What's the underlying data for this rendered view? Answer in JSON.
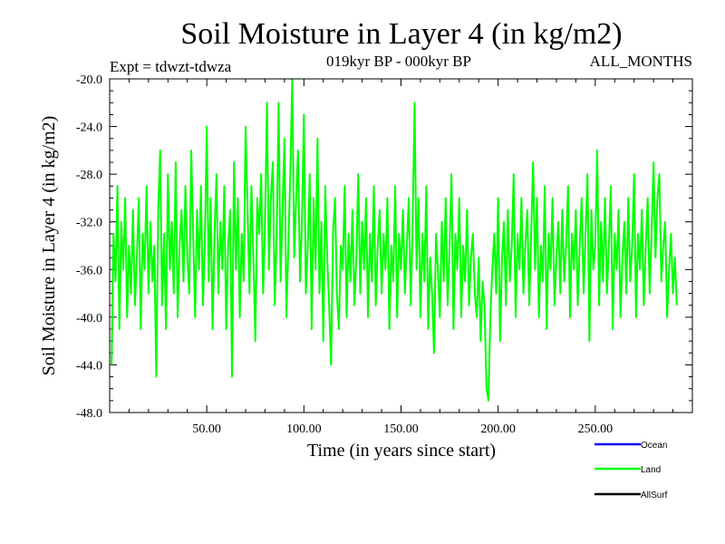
{
  "chart_data": {
    "type": "line",
    "title": "Soil Moisture in Layer 4 (in kg/m2)",
    "subtitle_left": "Expt = tdwzt-tdwza",
    "subtitle_center": "019kyr BP - 000kyr BP",
    "subtitle_right": "ALL_MONTHS",
    "xlabel": "Time (in years since start)",
    "ylabel": "Soil Moisture in Layer 4 (in kg/m2)",
    "xlim": [
      0,
      300
    ],
    "ylim": [
      -48,
      -20
    ],
    "x_ticks": [
      50,
      100,
      150,
      200,
      250
    ],
    "x_tick_labels": [
      "50.00",
      "100.00",
      "150.00",
      "200.00",
      "250.00"
    ],
    "y_ticks": [
      -20,
      -24,
      -28,
      -32,
      -36,
      -40,
      -44,
      -48
    ],
    "y_tick_labels": [
      "-20.0",
      "-24.0",
      "-28.0",
      "-32.0",
      "-36.0",
      "-40.0",
      "-44.0",
      "-48.0"
    ],
    "series": [
      {
        "name": "Land",
        "color": "#00ff00",
        "x_start": 1,
        "x_step": 1,
        "values": [
          -44,
          -33,
          -37,
          -29,
          -41,
          -32,
          -36,
          -30,
          -40,
          -34,
          -38,
          -31,
          -39,
          -35,
          -30,
          -41,
          -33,
          -36,
          -29,
          -38,
          -32,
          -37,
          -34,
          -45,
          -31,
          -26,
          -39,
          -33,
          -41,
          -28,
          -36,
          -32,
          -38,
          -27,
          -40,
          -34,
          -31,
          -37,
          -29,
          -35,
          -38,
          -26,
          -33,
          -40,
          -31,
          -36,
          -29,
          -39,
          -34,
          -24,
          -37,
          -30,
          -41,
          -33,
          -28,
          -38,
          -32,
          -36,
          -29,
          -41,
          -34,
          -31,
          -45,
          -27,
          -36,
          -30,
          -40,
          -33,
          -37,
          -24,
          -31,
          -38,
          -29,
          -35,
          -42,
          -30,
          -33,
          -28,
          -38,
          -32,
          -22,
          -36,
          -30,
          -27,
          -39,
          -33,
          -22,
          -37,
          -31,
          -25,
          -40,
          -34,
          -28,
          -20,
          -35,
          -30,
          -26,
          -37,
          -32,
          -23,
          -38,
          -34,
          -28,
          -41,
          -30,
          -36,
          -25,
          -38,
          -32,
          -42,
          -29,
          -35,
          -39,
          -44,
          -33,
          -30,
          -38,
          -41,
          -34,
          -36,
          -29,
          -40,
          -33,
          -37,
          -31,
          -39,
          -35,
          -28,
          -38,
          -32,
          -36,
          -30,
          -40,
          -33,
          -37,
          -29,
          -39,
          -34,
          -31,
          -38,
          -33,
          -36,
          -30,
          -41,
          -34,
          -37,
          -29,
          -40,
          -33,
          -36,
          -31,
          -38,
          -34,
          -30,
          -39,
          -32,
          -22,
          -36,
          -30,
          -40,
          -33,
          -37,
          -29,
          -41,
          -35,
          -38,
          -43,
          -33,
          -36,
          -40,
          -32,
          -37,
          -30,
          -39,
          -34,
          -28,
          -41,
          -33,
          -36,
          -30,
          -40,
          -34,
          -37,
          -31,
          -39,
          -35,
          -33,
          -38,
          -40,
          -35,
          -42,
          -37,
          -39,
          -46,
          -47,
          -40,
          -36,
          -33,
          -38,
          -30,
          -42,
          -35,
          -32,
          -39,
          -31,
          -37,
          -34,
          -28,
          -40,
          -33,
          -36,
          -30,
          -38,
          -34,
          -31,
          -39,
          -33,
          -27,
          -36,
          -30,
          -40,
          -34,
          -37,
          -29,
          -41,
          -33,
          -36,
          -30,
          -39,
          -35,
          -32,
          -38,
          -31,
          -37,
          -34,
          -29,
          -40,
          -33,
          -36,
          -31,
          -39,
          -34,
          -30,
          -38,
          -33,
          -28,
          -42,
          -31,
          -36,
          -34,
          -26,
          -39,
          -32,
          -37,
          -30,
          -38,
          -34,
          -29,
          -41,
          -33,
          -36,
          -31,
          -40,
          -35,
          -32,
          -38,
          -30,
          -37,
          -34,
          -28,
          -40,
          -33,
          -36,
          -31,
          -39,
          -34,
          -30,
          -38,
          -33,
          -27,
          -35,
          -30,
          -28,
          -37,
          -34,
          -32,
          -40,
          -36,
          -33,
          -38,
          -35,
          -39
        ]
      },
      {
        "name": "Ocean",
        "color": "#0000ff",
        "values": []
      },
      {
        "name": "AllSurf",
        "color": "#000000",
        "values": []
      }
    ],
    "legend": [
      {
        "label": "Ocean",
        "color": "#0000ff"
      },
      {
        "label": "Land",
        "color": "#00ff00"
      },
      {
        "label": "AllSurf",
        "color": "#000000"
      }
    ],
    "legend_position": "bottom-right"
  }
}
